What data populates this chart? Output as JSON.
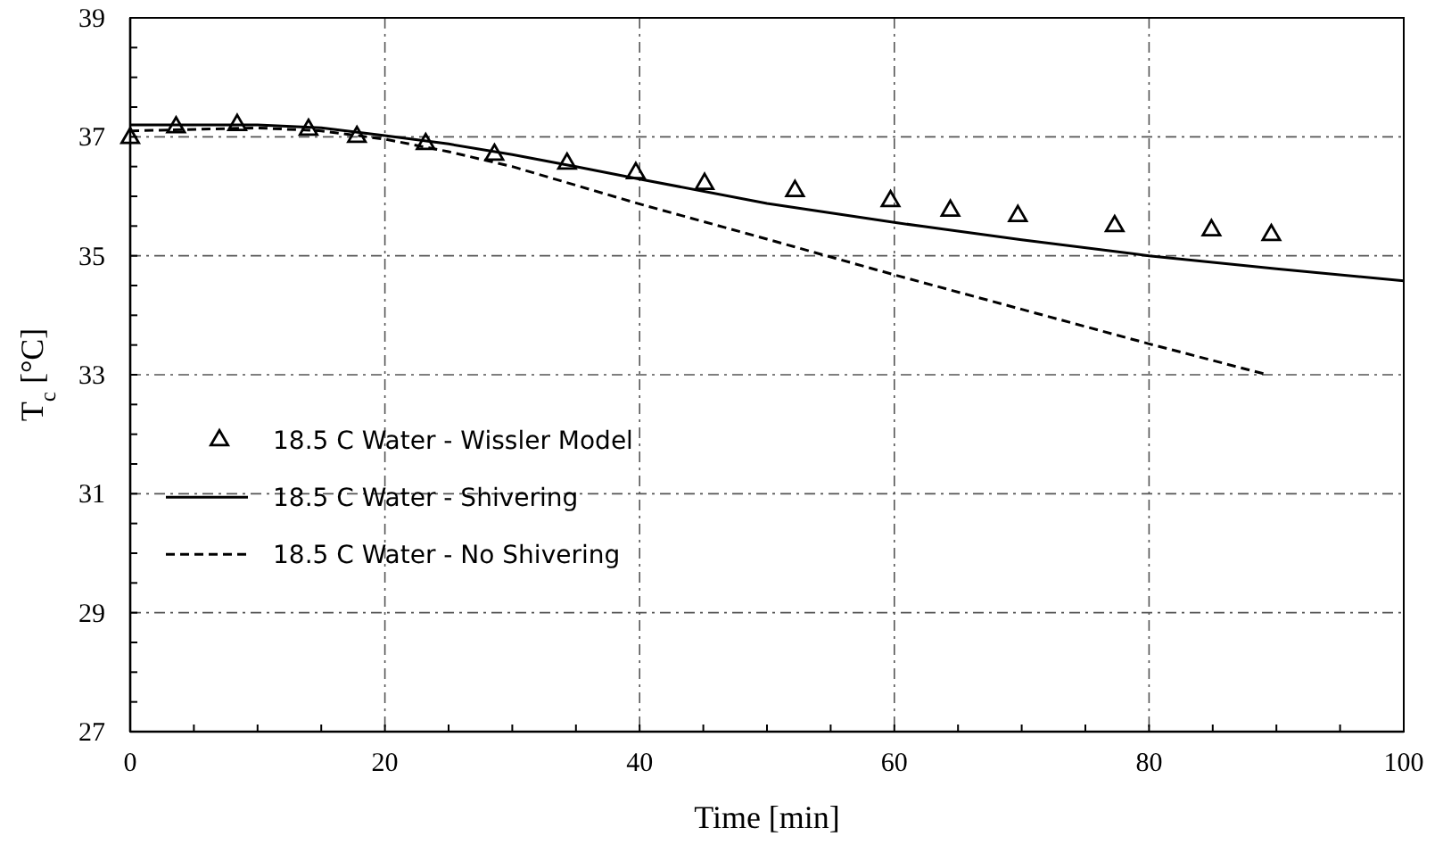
{
  "chart_data": {
    "type": "line",
    "xlabel": "Time [min]",
    "ylabel": "T$_{c}$ [°C]",
    "xlim": [
      0,
      100
    ],
    "ylim": [
      27,
      39
    ],
    "xticks": [
      0,
      {
        "value": 5,
        "label": null
      },
      {
        "value": 10,
        "label": null
      },
      {
        "value": 15,
        "label": null
      },
      20,
      {
        "value": 25,
        "label": null
      },
      {
        "value": 30,
        "label": null
      },
      {
        "value": 35,
        "label": null
      },
      40,
      {
        "value": 45,
        "label": null
      },
      {
        "value": 50,
        "label": null
      },
      {
        "value": 55,
        "label": null
      },
      60,
      {
        "value": 65,
        "label": null
      },
      {
        "value": 70,
        "label": null
      },
      {
        "value": 75,
        "label": null
      },
      80,
      {
        "value": 85,
        "label": null
      },
      {
        "value": 90,
        "label": null
      },
      {
        "value": 95,
        "label": null
      },
      100
    ],
    "yticks": [
      27,
      {
        "value": 27.5,
        "label": null
      },
      {
        "value": 28,
        "label": null
      },
      {
        "value": 28.5,
        "label": null
      },
      29,
      {
        "value": 29.5,
        "label": null
      },
      {
        "value": 30,
        "label": null
      },
      {
        "value": 30.5,
        "label": null
      },
      31,
      {
        "value": 31.5,
        "label": null
      },
      {
        "value": 32,
        "label": null
      },
      {
        "value": 32.5,
        "label": null
      },
      33,
      {
        "value": 33.5,
        "label": null
      },
      {
        "value": 34,
        "label": null
      },
      {
        "value": 34.5,
        "label": null
      },
      35,
      {
        "value": 35.5,
        "label": null
      },
      {
        "value": 36,
        "label": null
      },
      {
        "value": 36.5,
        "label": null
      },
      37,
      {
        "value": 37.5,
        "label": null
      },
      {
        "value": 38,
        "label": null
      },
      {
        "value": 38.5,
        "label": null
      },
      39
    ],
    "grid": true,
    "legend": "left",
    "series": [
      {
        "name": "18.5 C Water - Wissler Model",
        "type": "scatter",
        "marker": "triangle",
        "color": "#000000",
        "x": [
          0,
          3.6,
          8.4,
          14.0,
          17.8,
          23.2,
          28.6,
          34.3,
          39.7,
          45.1,
          52.2,
          59.7,
          64.4,
          69.7,
          77.3,
          84.9,
          89.6
        ],
        "values": [
          36.98,
          37.16,
          37.2,
          37.12,
          37.0,
          36.88,
          36.7,
          36.55,
          36.39,
          36.21,
          36.09,
          35.92,
          35.76,
          35.67,
          35.5,
          35.43,
          35.35
        ]
      },
      {
        "name": "18.5 C Water - Shivering",
        "line_style": "solid",
        "color": "#000000",
        "x": [
          0,
          10,
          15,
          20,
          25,
          30,
          35,
          40,
          50,
          60,
          70,
          80,
          90,
          100
        ],
        "values": [
          37.2,
          37.2,
          37.15,
          37.02,
          36.88,
          36.7,
          36.5,
          36.29,
          35.88,
          35.56,
          35.27,
          35.0,
          34.78,
          34.58
        ]
      },
      {
        "name": "18.5 C Water - No Shivering",
        "line_style": "dashed",
        "color": "#000000",
        "x": [
          0,
          10,
          15,
          20,
          25,
          30,
          40,
          50,
          60,
          70,
          80,
          89.3
        ],
        "values": [
          37.1,
          37.15,
          37.1,
          36.96,
          36.75,
          36.5,
          35.87,
          35.28,
          34.68,
          34.1,
          33.52,
          33.0
        ]
      }
    ]
  }
}
